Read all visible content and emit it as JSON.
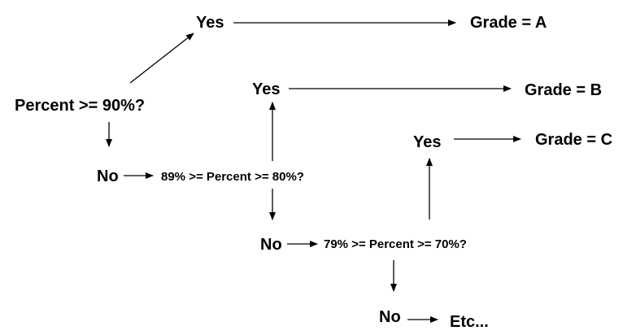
{
  "diagram": {
    "question_90": "Percent >= 90%?",
    "question_80": "89% >= Percent >= 80%?",
    "question_70": "79% >= Percent >= 70%?",
    "yes_label": "Yes",
    "no_label": "No",
    "grade_a": "Grade = A",
    "grade_b": "Grade = B",
    "grade_c": "Grade = C",
    "etc": "Etc..."
  },
  "colors": {
    "ink": "#000000",
    "background": "#ffffff"
  }
}
